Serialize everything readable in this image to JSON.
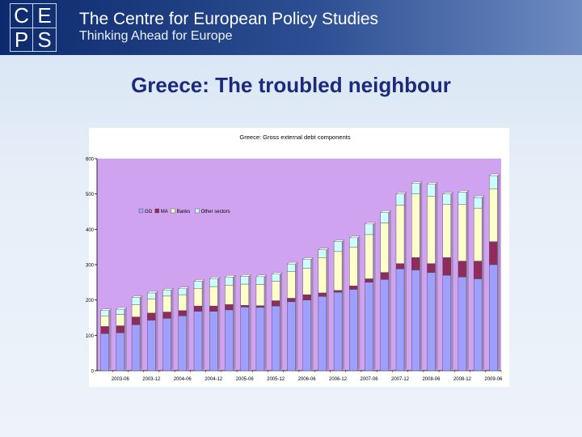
{
  "header": {
    "logo_letters": [
      "C",
      "E",
      "P",
      "S"
    ],
    "org_name": "The Centre for European Policy Studies",
    "tagline": "Thinking Ahead for Europe"
  },
  "slide": {
    "title": "Greece: The troubled neighbour"
  },
  "chart_data": {
    "type": "bar",
    "stacked": true,
    "title": "Greece: Gross external debt components",
    "xlabel": "",
    "ylabel": "",
    "ylim": [
      0,
      600
    ],
    "yticks": [
      0,
      100,
      200,
      300,
      400,
      500,
      600
    ],
    "grid": false,
    "legend_position": "top-left",
    "x_tick_labels": [
      "2003-06",
      "2003-12",
      "2004-06",
      "2004-12",
      "2005-06",
      "2005-12",
      "2006-06",
      "2006-12",
      "2007-06",
      "2007-12",
      "2008-06",
      "2008-12",
      "2009-06"
    ],
    "categories": [
      "2003-03",
      "2003-06",
      "2003-09",
      "2003-12",
      "2004-03",
      "2004-06",
      "2004-09",
      "2004-12",
      "2005-03",
      "2005-06",
      "2005-09",
      "2005-12",
      "2006-03",
      "2006-06",
      "2006-09",
      "2006-12",
      "2007-03",
      "2007-06",
      "2007-09",
      "2007-12",
      "2008-03",
      "2008-06",
      "2008-09",
      "2008-12",
      "2009-03",
      "2009-06"
    ],
    "series": [
      {
        "name": "GG",
        "color": "#9f9fff",
        "values": [
          105,
          107,
          130,
          143,
          148,
          155,
          168,
          168,
          172,
          180,
          179,
          183,
          195,
          200,
          210,
          222,
          230,
          250,
          258,
          288,
          285,
          278,
          270,
          265,
          260,
          300
        ]
      },
      {
        "name": "MA",
        "color": "#8e2c5e",
        "values": [
          20,
          20,
          22,
          20,
          18,
          15,
          15,
          15,
          15,
          5,
          5,
          15,
          10,
          15,
          10,
          5,
          10,
          10,
          20,
          15,
          35,
          25,
          50,
          45,
          50,
          65
        ]
      },
      {
        "name": "Banks",
        "color": "#ffffcc",
        "values": [
          30,
          32,
          35,
          40,
          45,
          45,
          50,
          55,
          55,
          60,
          60,
          55,
          75,
          75,
          100,
          110,
          110,
          125,
          140,
          165,
          180,
          190,
          150,
          160,
          150,
          150
        ]
      },
      {
        "name": "Other sectors",
        "color": "#ccffff",
        "values": [
          15,
          15,
          20,
          17,
          17,
          17,
          20,
          22,
          23,
          22,
          22,
          20,
          22,
          25,
          22,
          28,
          26,
          30,
          30,
          32,
          30,
          35,
          30,
          35,
          30,
          37
        ]
      }
    ]
  }
}
